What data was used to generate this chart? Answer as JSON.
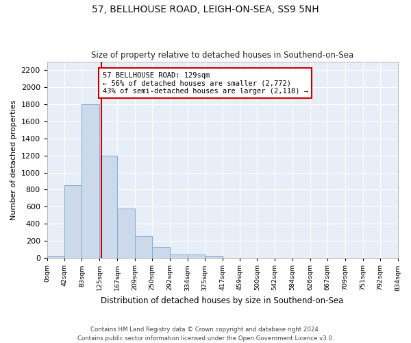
{
  "title": "57, BELLHOUSE ROAD, LEIGH-ON-SEA, SS9 5NH",
  "subtitle": "Size of property relative to detached houses in Southend-on-Sea",
  "xlabel": "Distribution of detached houses by size in Southend-on-Sea",
  "ylabel": "Number of detached properties",
  "bar_edges": [
    0,
    42,
    83,
    125,
    167,
    209,
    250,
    292,
    334,
    375,
    417,
    459,
    500,
    542,
    584,
    626,
    667,
    709,
    751,
    792,
    834
  ],
  "bar_heights": [
    25,
    850,
    1800,
    1200,
    580,
    255,
    130,
    40,
    40,
    25,
    0,
    0,
    0,
    0,
    0,
    0,
    0,
    0,
    0,
    0
  ],
  "bar_color": "#ccd9ea",
  "bar_edge_color": "#7aaed6",
  "red_line_x": 129,
  "annotation_text": "57 BELLHOUSE ROAD: 129sqm\n← 56% of detached houses are smaller (2,772)\n43% of semi-detached houses are larger (2,118) →",
  "annotation_box_color": "white",
  "annotation_box_edge_color": "#cc0000",
  "red_line_color": "#cc0000",
  "ylim": [
    0,
    2300
  ],
  "yticks": [
    0,
    200,
    400,
    600,
    800,
    1000,
    1200,
    1400,
    1600,
    1800,
    2000,
    2200
  ],
  "tick_labels": [
    "0sqm",
    "42sqm",
    "83sqm",
    "125sqm",
    "167sqm",
    "209sqm",
    "250sqm",
    "292sqm",
    "334sqm",
    "375sqm",
    "417sqm",
    "459sqm",
    "500sqm",
    "542sqm",
    "584sqm",
    "626sqm",
    "667sqm",
    "709sqm",
    "751sqm",
    "792sqm",
    "834sqm"
  ],
  "footnote": "Contains HM Land Registry data © Crown copyright and database right 2024.\nContains public sector information licensed under the Open Government Licence v3.0.",
  "fig_bg_color": "#ffffff",
  "plot_bg_color": "#e8eef7",
  "grid_color": "#ffffff"
}
